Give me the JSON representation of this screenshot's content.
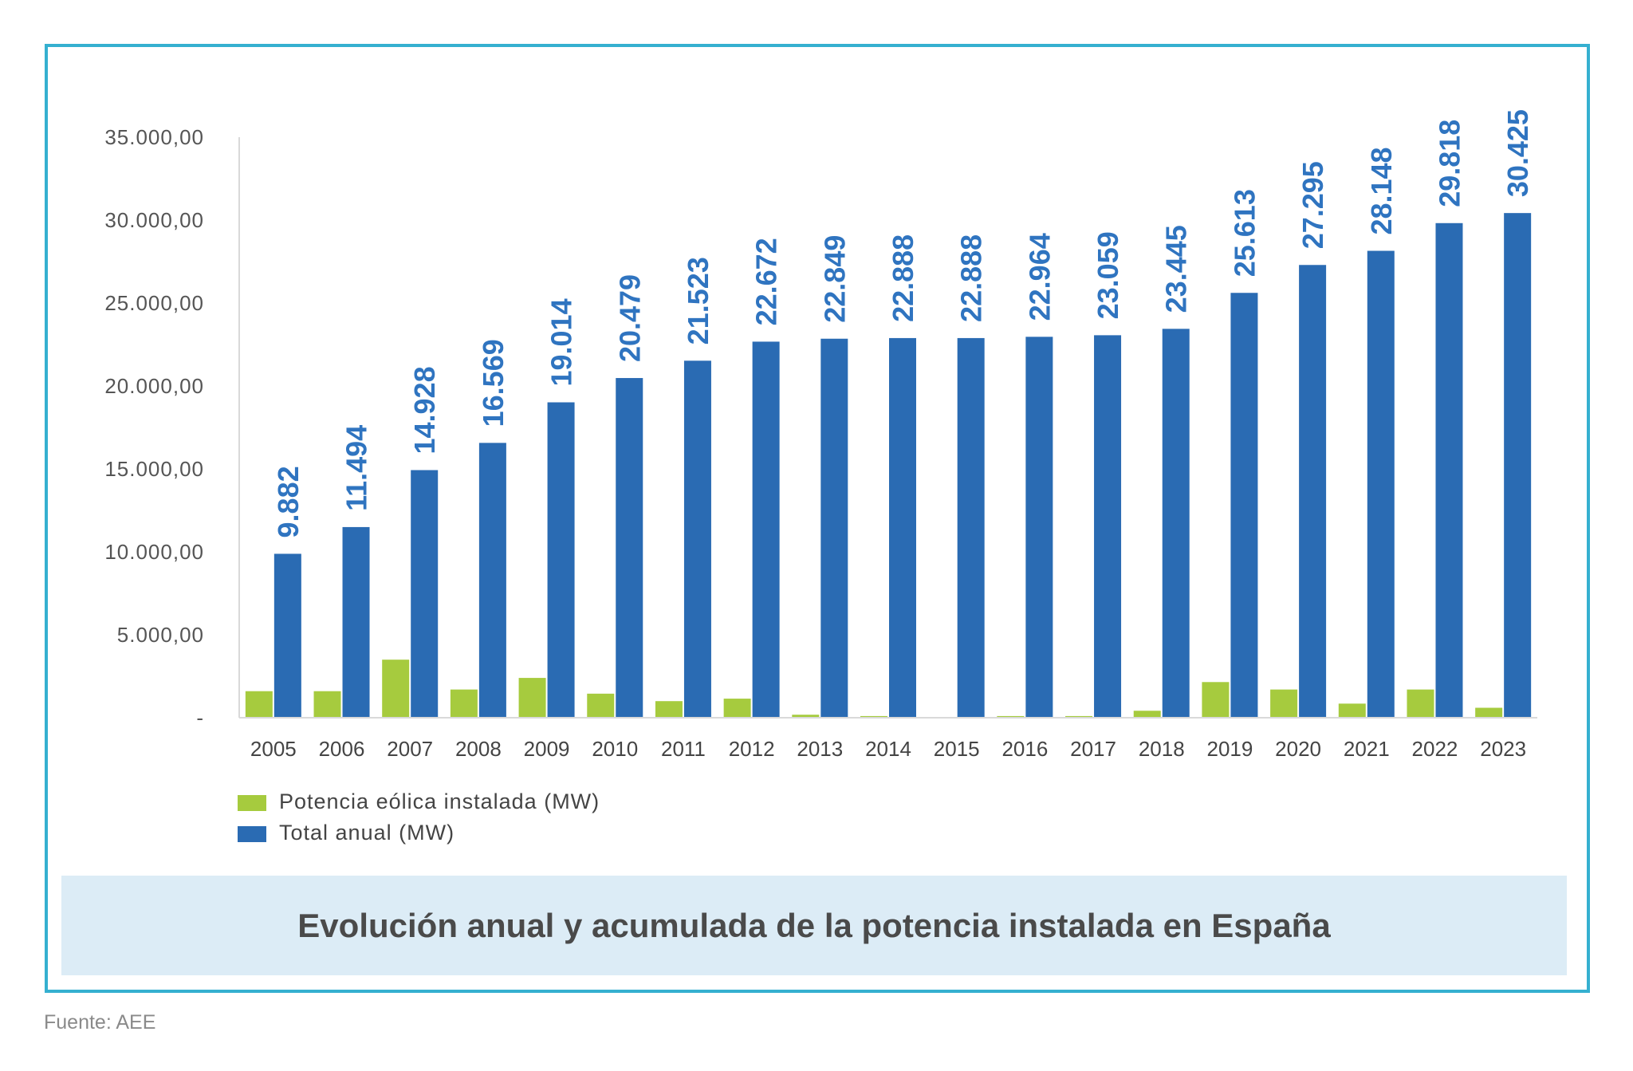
{
  "chart_data": {
    "type": "bar",
    "title": "Evolución anual y acumulada de la potencia instalada en España",
    "categories": [
      "2005",
      "2006",
      "2007",
      "2008",
      "2009",
      "2010",
      "2011",
      "2012",
      "2013",
      "2014",
      "2015",
      "2016",
      "2017",
      "2018",
      "2019",
      "2020",
      "2021",
      "2022",
      "2023"
    ],
    "series": [
      {
        "name": "Potencia eólica instalada (MW)",
        "color": "#a6cb3e",
        "values": [
          1600,
          1600,
          3500,
          1700,
          2400,
          1450,
          1000,
          1150,
          180,
          100,
          0,
          100,
          100,
          420,
          2150,
          1700,
          850,
          1700,
          600
        ]
      },
      {
        "name": "Total anual (MW)",
        "color": "#2a6bb3",
        "values": [
          9882,
          11494,
          14928,
          16569,
          19014,
          20479,
          21523,
          22672,
          22849,
          22888,
          22888,
          22964,
          23059,
          23445,
          25613,
          27295,
          28148,
          29818,
          30425
        ]
      }
    ],
    "data_labels": [
      "9.882",
      "11.494",
      "14.928",
      "16.569",
      "19.014",
      "20.479",
      "21.523",
      "22.672",
      "22.849",
      "22.888",
      "22.888",
      "22.964",
      "23.059",
      "23.445",
      "25.613",
      "27.295",
      "28.148",
      "29.818",
      "30.425"
    ],
    "yticks": [
      0,
      5000,
      10000,
      15000,
      20000,
      25000,
      30000,
      35000
    ],
    "ytick_labels": [
      "-",
      "5.000,00",
      "10.000,00",
      "15.000,00",
      "20.000,00",
      "25.000,00",
      "30.000,00",
      "35.000,00"
    ],
    "ylim": [
      0,
      35000
    ],
    "legend_position": "bottom-left",
    "grid": false
  },
  "source_note": "Fuente: AEE"
}
